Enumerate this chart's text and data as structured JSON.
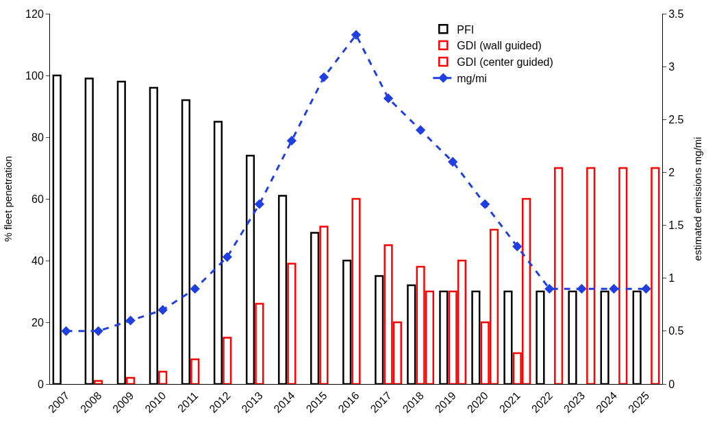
{
  "chart_data": {
    "type": "bar",
    "categories": [
      "2007",
      "2008",
      "2009",
      "2010",
      "2011",
      "2012",
      "2013",
      "2014",
      "2015",
      "2016",
      "2017",
      "2018",
      "2019",
      "2020",
      "2021",
      "2022",
      "2023",
      "2024",
      "2025"
    ],
    "ylabel": "% fleet penetration",
    "y2label": "estimated emissions mg/mi",
    "ylim": [
      0,
      120
    ],
    "yticks": [
      0,
      20,
      40,
      60,
      80,
      100,
      120
    ],
    "y2lim": [
      0,
      3.5
    ],
    "y2ticks": [
      0,
      0.5,
      1,
      1.5,
      2,
      2.5,
      3,
      3.5
    ],
    "legend": "top right",
    "series": [
      {
        "name": "PFI",
        "color": "#000000",
        "values": [
          100,
          99,
          98,
          96,
          92,
          85,
          74,
          61,
          49,
          40,
          35,
          32,
          30,
          30,
          30,
          30,
          30,
          30,
          30
        ]
      },
      {
        "name": "GDI (wall guided)",
        "color": "#ff0000",
        "values": [
          null,
          1,
          2,
          4,
          8,
          15,
          26,
          39,
          51,
          60,
          45,
          38,
          30,
          20,
          10,
          null,
          null,
          null,
          null
        ]
      },
      {
        "name": "GDI (center guided)",
        "color": "#ff0000",
        "values": [
          null,
          null,
          null,
          null,
          null,
          null,
          null,
          null,
          null,
          null,
          20,
          30,
          40,
          50,
          60,
          70,
          70,
          70,
          70
        ]
      },
      {
        "name": "mg/mi",
        "type": "line",
        "axis": "y2",
        "color": "#1f3fe0",
        "marker": "diamond",
        "line_style": "dashed",
        "values": [
          0.5,
          0.5,
          0.6,
          0.7,
          0.9,
          1.2,
          1.7,
          2.3,
          2.9,
          3.3,
          2.7,
          2.4,
          2.1,
          1.7,
          1.3,
          0.9,
          0.9,
          0.9,
          0.9
        ]
      }
    ]
  }
}
